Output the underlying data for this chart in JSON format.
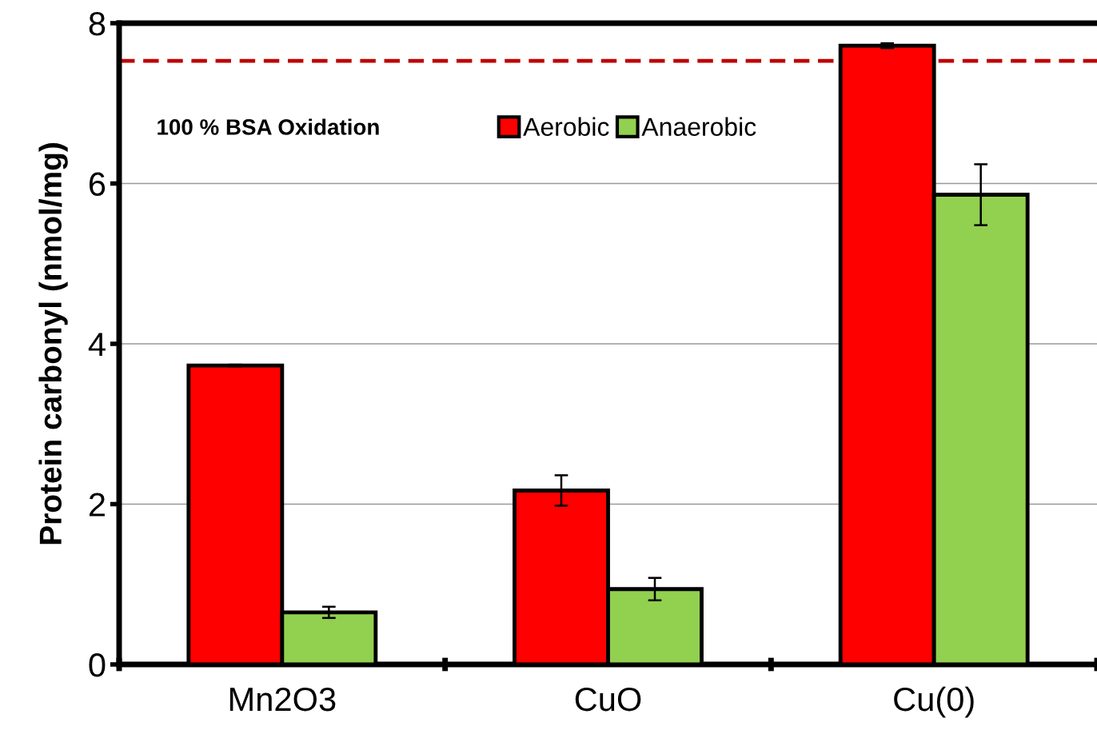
{
  "chart_data": {
    "type": "bar",
    "ylabel": "Protein carbonyl (nmol/mg)",
    "categories": [
      "Mn2O3",
      "CuO",
      "Cu(0)"
    ],
    "series": [
      {
        "name": "Aerobic",
        "color": "#ff0000",
        "values": [
          3.73,
          2.17,
          7.72
        ],
        "errors": [
          0.01,
          0.19,
          0.03
        ]
      },
      {
        "name": "Anaerobic",
        "color": "#92d050",
        "values": [
          0.65,
          0.94,
          5.86
        ],
        "errors": [
          0.07,
          0.14,
          0.38
        ]
      }
    ],
    "ylim": [
      0,
      8
    ],
    "yticks": [
      0,
      2,
      4,
      6,
      8
    ],
    "grid": "y",
    "legend": "top",
    "ref_lines": [
      {
        "axis": "y",
        "value": 7.53,
        "label": "100 % BSA Oxidation",
        "color": "#c00000",
        "line_style": "dashed"
      }
    ]
  }
}
